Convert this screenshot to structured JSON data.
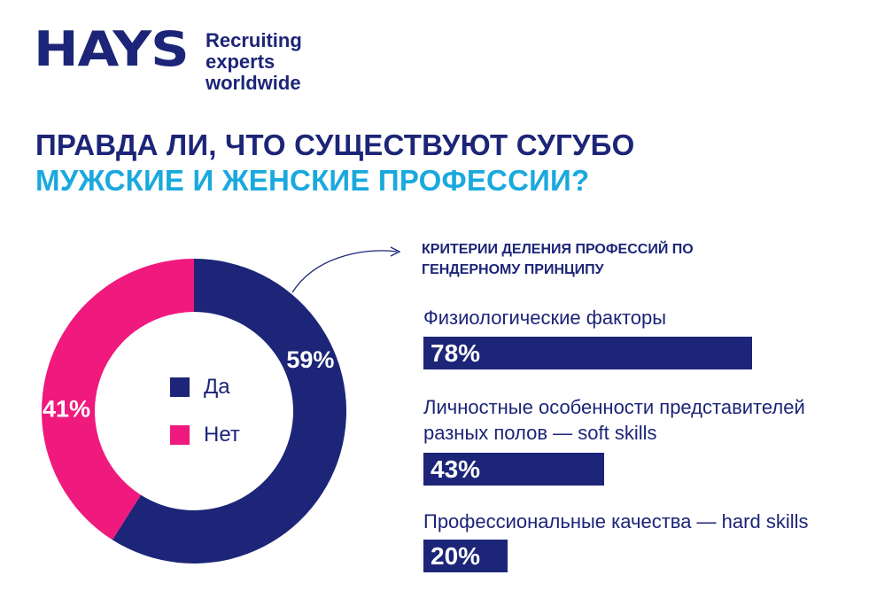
{
  "header": {
    "logo_text": "HAYS",
    "tagline_line1": "Recruiting experts",
    "tagline_line2": "worldwide"
  },
  "headline": {
    "line1": "ПРАВДА ЛИ, ЧТО СУЩЕСТВУЮТ СУГУБО",
    "line2": "МУЖСКИЕ И ЖЕНСКИЕ ПРОФЕССИИ?"
  },
  "colors": {
    "navy": "#1c2577",
    "pink": "#f0197d",
    "cyan": "#1aa9dd"
  },
  "chart_data": [
    {
      "type": "pie",
      "donut": true,
      "categories": [
        "Да",
        "Нет"
      ],
      "values": [
        59,
        41
      ],
      "value_labels": [
        "59%",
        "41%"
      ],
      "colors": [
        "#1c2577",
        "#f0197d"
      ],
      "legend": [
        "Да",
        "Нет"
      ],
      "legend_position": "center"
    },
    {
      "type": "bar",
      "orientation": "horizontal",
      "title_line1": "КРИТЕРИИ ДЕЛЕНИЯ ПРОФЕССИЙ ПО",
      "title_line2": "ГЕНДЕРНОМУ ПРИНЦИПУ",
      "bars": [
        {
          "label_lines": [
            "Физиологические факторы"
          ],
          "value": 78,
          "value_label": "78%"
        },
        {
          "label_lines": [
            "Личностные особенности представителей",
            "разных полов — soft skills"
          ],
          "value": 43,
          "value_label": "43%"
        },
        {
          "label_lines": [
            "Профессиональные качества — hard skills"
          ],
          "value": 20,
          "value_label": "20%"
        }
      ],
      "xlim": [
        0,
        100
      ],
      "color": "#1c2577"
    }
  ]
}
